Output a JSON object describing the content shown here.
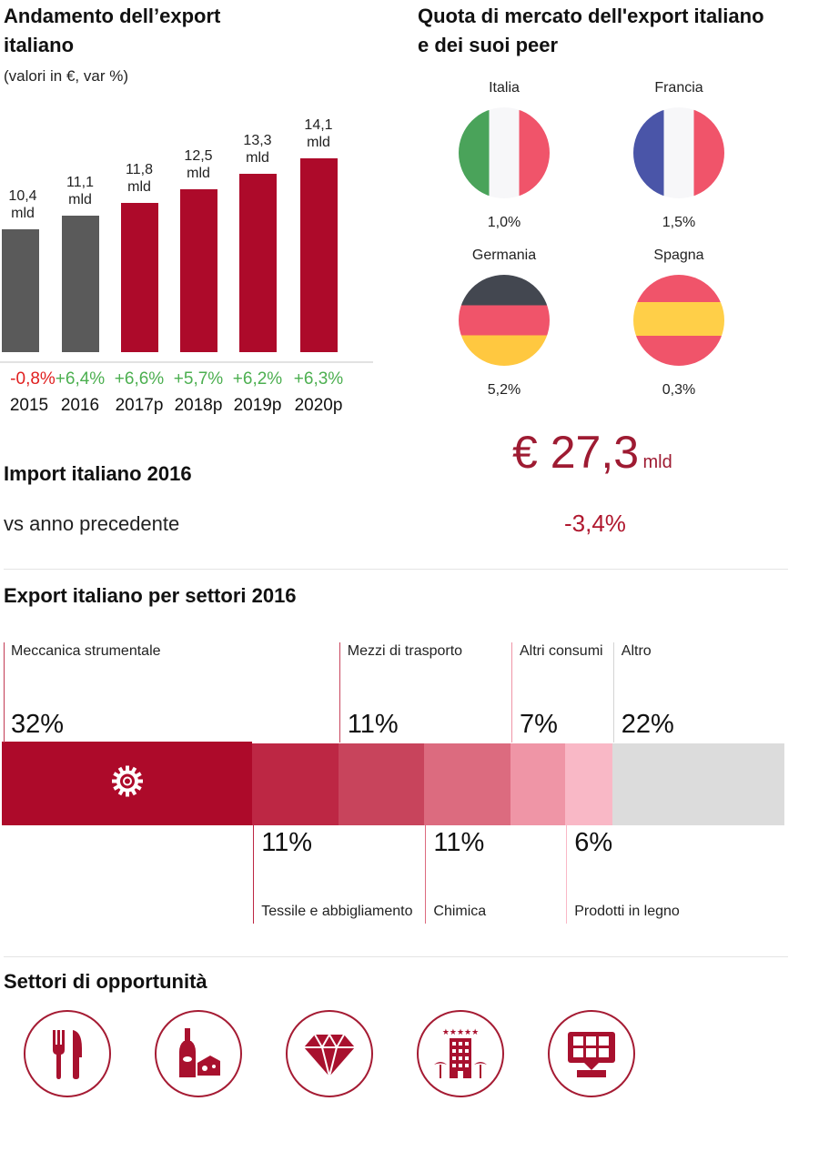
{
  "export_section": {
    "title_line1": "Andamento dell’export",
    "title_line2": "italiano",
    "subtitle": "(valori in €, var %)"
  },
  "chart_data": [
    {
      "type": "bar",
      "title": "Andamento dell’export italiano",
      "subtitle": "(valori in €, var %)",
      "categories": [
        "2015",
        "2016",
        "2017p",
        "2018p",
        "2019p",
        "2020p"
      ],
      "values": [
        10.4,
        11.1,
        11.8,
        12.5,
        13.3,
        14.1
      ],
      "value_labels": [
        "10,4",
        "11,1",
        "11,8",
        "12,5",
        "13,3",
        "14,1"
      ],
      "unit_label": "mld",
      "variations": [
        "-0,8%",
        "+6,4%",
        "+6,6%",
        "+5,7%",
        "+6,2%",
        "+6,3%"
      ],
      "variation_colors": [
        "#e02020",
        "#4caf50",
        "#4caf50",
        "#4caf50",
        "#4caf50",
        "#4caf50"
      ],
      "bar_colors": [
        "#5a5a5a",
        "#5a5a5a",
        "#ad0a2a",
        "#ad0a2a",
        "#ad0a2a",
        "#ad0a2a"
      ],
      "xlabel": "",
      "ylabel": "",
      "ylim": [
        0,
        14.1
      ],
      "grid": false,
      "legend": "none"
    },
    {
      "type": "bar",
      "orientation": "stacked-horizontal",
      "title": "Export italiano per settori 2016",
      "categories": [
        "Meccanica strumentale",
        "Tessile e abbigliamento",
        "Mezzi di trasporto",
        "Chimica",
        "Altri consumi",
        "Prodotti in legno",
        "Altro"
      ],
      "values": [
        32,
        11,
        11,
        11,
        7,
        6,
        22
      ],
      "labels": [
        "32%",
        "11%",
        "11%",
        "11%",
        "7%",
        "6%",
        "22%"
      ],
      "label_side": [
        "top",
        "bottom",
        "top",
        "bottom",
        "top",
        "bottom",
        "top"
      ],
      "colors": [
        "#ad0a2a",
        "#bd2744",
        "#c8445c",
        "#dc6b7f",
        "#ef95a6",
        "#f9b8c6",
        "#dcdcdc"
      ],
      "legend": "none"
    }
  ],
  "market_share": {
    "title_line1": "Quota di mercato dell'export italiano",
    "title_line2": "e dei suoi peer",
    "countries": [
      {
        "name": "Italia",
        "share": "1,0%",
        "flag": "italy-flag",
        "colors": [
          "#4aa35a",
          "#f7f7f9",
          "#f0546a"
        ]
      },
      {
        "name": "Francia",
        "share": "1,5%",
        "flag": "france-flag",
        "colors": [
          "#4a55a8",
          "#f7f7f9",
          "#f0546a"
        ]
      },
      {
        "name": "Germania",
        "share": "5,2%",
        "flag": "germany-flag",
        "colors": [
          "#434750",
          "#f0546a",
          "#ffc840"
        ]
      },
      {
        "name": "Spagna",
        "share": "0,3%",
        "flag": "spain-flag",
        "colors": [
          "#f0546a",
          "#ffcf48",
          "#f0546a"
        ]
      }
    ]
  },
  "import_section": {
    "title": "Import italiano 2016",
    "comparison_label": "vs anno precedente",
    "value": "€ 27,3",
    "unit": "mld",
    "variation": "-3,4%",
    "accent_color": "#9e1b32"
  },
  "sectors_section": {
    "title": "Export italiano per settori 2016",
    "icon": "gear-icon"
  },
  "opportunities": {
    "title": "Settori di opportunità",
    "icons": [
      "food-cutlery-icon",
      "wine-cheese-icon",
      "diamond-icon",
      "hotel-icon",
      "solar-panel-icon"
    ]
  }
}
